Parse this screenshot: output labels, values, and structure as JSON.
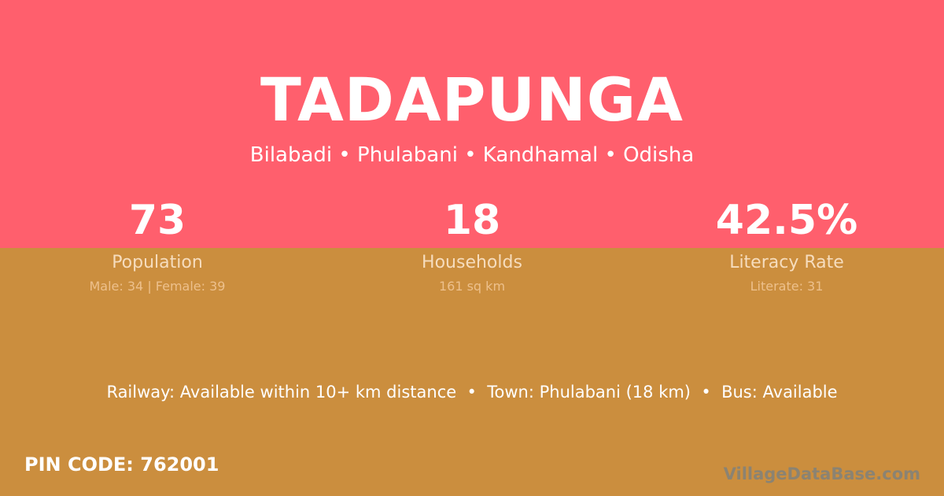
{
  "village": {
    "name": "TADAPUNGA",
    "location": "Bilabadi • Phulabani • Kandhamal • Odisha"
  },
  "stats": [
    {
      "value": "73",
      "label": "Population",
      "detail": "Male: 34 | Female: 39"
    },
    {
      "value": "18",
      "label": "Households",
      "detail": "161 sq km"
    },
    {
      "value": "42.5%",
      "label": "Literacy Rate",
      "detail": "Literate: 31"
    }
  ],
  "connectivity": "Railway: Available within 10+ km distance  •  Town: Phulabani (18 km)  •  Bus: Available",
  "pin_code": "PIN CODE: 762001",
  "watermark": "VillageDataBase.com",
  "colors": {
    "top": "#FF5F6D",
    "bottom": "#CB8E3E"
  }
}
